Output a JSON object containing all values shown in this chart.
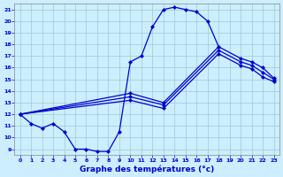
{
  "xlabel": "Graphe des températures (°c)",
  "bg_color": "#cceeff",
  "grid_color": "#99cccc",
  "line_color": "#0000cc",
  "xlim": [
    -0.5,
    23.5
  ],
  "ylim": [
    8.5,
    21.5
  ],
  "xticks": [
    0,
    1,
    2,
    3,
    4,
    5,
    6,
    7,
    8,
    9,
    10,
    11,
    12,
    13,
    14,
    15,
    16,
    17,
    18,
    19,
    20,
    21,
    22,
    23
  ],
  "yticks": [
    9,
    10,
    11,
    12,
    13,
    14,
    15,
    16,
    17,
    18,
    19,
    20,
    21
  ],
  "curve_main_x": [
    0,
    1,
    2,
    3,
    4,
    5,
    6,
    7,
    8,
    9,
    10,
    11,
    12,
    13,
    14,
    15,
    16,
    17,
    18
  ],
  "curve_main_y": [
    12.0,
    11.2,
    10.8,
    11.2,
    10.5,
    9.0,
    9.0,
    8.8,
    8.8,
    10.5,
    16.5,
    17.0,
    19.5,
    21.0,
    21.2,
    21.0,
    20.8,
    20.0,
    17.8
  ],
  "curve_a_x": [
    0,
    10,
    13,
    18,
    20,
    21,
    22,
    23
  ],
  "curve_a_y": [
    12.0,
    13.8,
    13.0,
    17.8,
    16.8,
    16.5,
    16.0,
    15.1
  ],
  "curve_b_x": [
    0,
    10,
    13,
    18,
    20,
    21,
    22,
    23
  ],
  "curve_b_y": [
    12.0,
    13.5,
    12.8,
    17.5,
    16.5,
    16.2,
    15.6,
    15.0
  ],
  "curve_c_x": [
    0,
    10,
    13,
    18,
    20,
    21,
    22,
    23
  ],
  "curve_c_y": [
    12.0,
    13.2,
    12.5,
    17.2,
    16.2,
    15.9,
    15.2,
    14.8
  ],
  "tick_labelsize": 4.5,
  "xlabel_fontsize": 6.5
}
